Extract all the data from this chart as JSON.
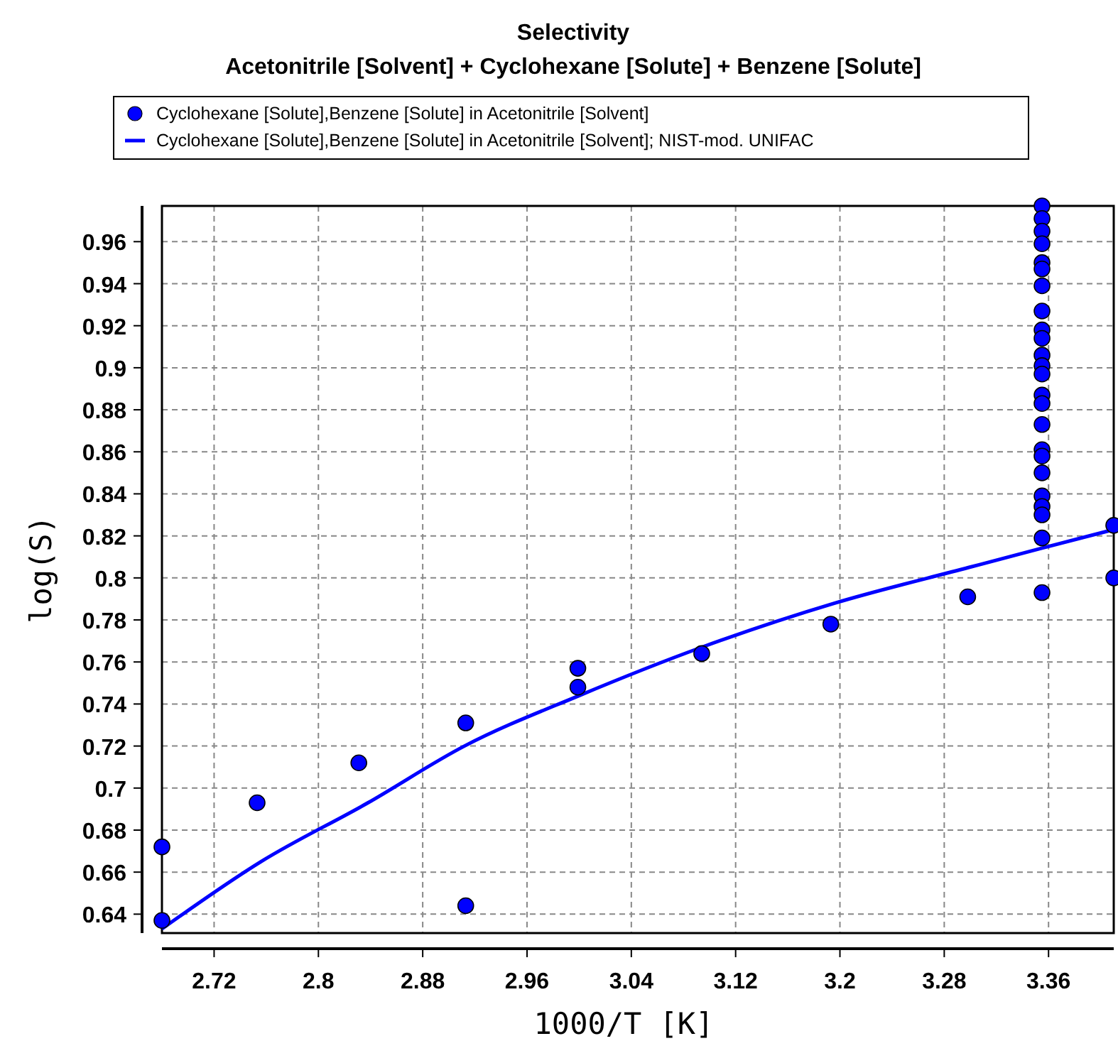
{
  "chart_data": {
    "type": "scatter",
    "title": "Selectivity",
    "subtitle": "Acetonitrile [Solvent] + Cyclohexane [Solute] + Benzene [Solute]",
    "xlabel": "1000/T [K]",
    "ylabel": "log(S)",
    "series": [
      {
        "name": "Cyclohexane [Solute],Benzene [Solute] in Acetonitrile [Solvent]",
        "color": "#0000ff",
        "marker": "circle",
        "x": [
          2.68,
          2.68,
          2.753,
          2.831,
          2.913,
          2.913,
          2.999,
          2.999,
          3.094,
          3.193,
          3.298,
          3.355,
          3.41,
          3.41,
          3.355,
          3.355,
          3.355,
          3.355,
          3.355,
          3.355,
          3.355,
          3.355,
          3.355,
          3.355,
          3.355,
          3.355,
          3.355,
          3.355,
          3.355,
          3.355,
          3.355,
          3.355,
          3.355,
          3.355,
          3.355,
          3.355,
          3.355
        ],
        "values": [
          0.672,
          0.637,
          0.693,
          0.712,
          0.731,
          0.644,
          0.757,
          0.748,
          0.764,
          0.778,
          0.791,
          0.793,
          0.825,
          0.8,
          0.977,
          0.971,
          0.965,
          0.959,
          0.95,
          0.947,
          0.939,
          0.927,
          0.918,
          0.914,
          0.906,
          0.901,
          0.897,
          0.887,
          0.883,
          0.873,
          0.861,
          0.858,
          0.85,
          0.839,
          0.834,
          0.83,
          0.819
        ]
      },
      {
        "name": "Cyclohexane [Solute],Benzene [Solute] in Acetonitrile [Solvent]; NIST-mod. UNIFAC",
        "type": "line",
        "color": "#0000ff",
        "marker": "none",
        "line_style": "solid",
        "x": [
          2.68,
          2.756,
          2.838,
          2.912,
          3.0,
          3.094,
          3.196,
          3.299,
          3.354,
          3.41
        ],
        "values": [
          0.633,
          0.665,
          0.693,
          0.72,
          0.744,
          0.767,
          0.788,
          0.805,
          0.814,
          0.823
        ]
      }
    ],
    "xlim": [
      2.68,
      3.41
    ],
    "xticks": [
      2.72,
      2.8,
      2.88,
      2.96,
      3.04,
      3.12,
      3.2,
      3.28,
      3.36
    ],
    "ylim": [
      0.631,
      0.977
    ],
    "yticks": [
      0.64,
      0.66,
      0.68,
      0.7,
      0.72,
      0.74,
      0.76,
      0.78,
      0.8,
      0.82,
      0.84,
      0.86,
      0.88,
      0.9,
      0.92,
      0.94,
      0.96
    ],
    "grid": true,
    "legend": "top"
  }
}
